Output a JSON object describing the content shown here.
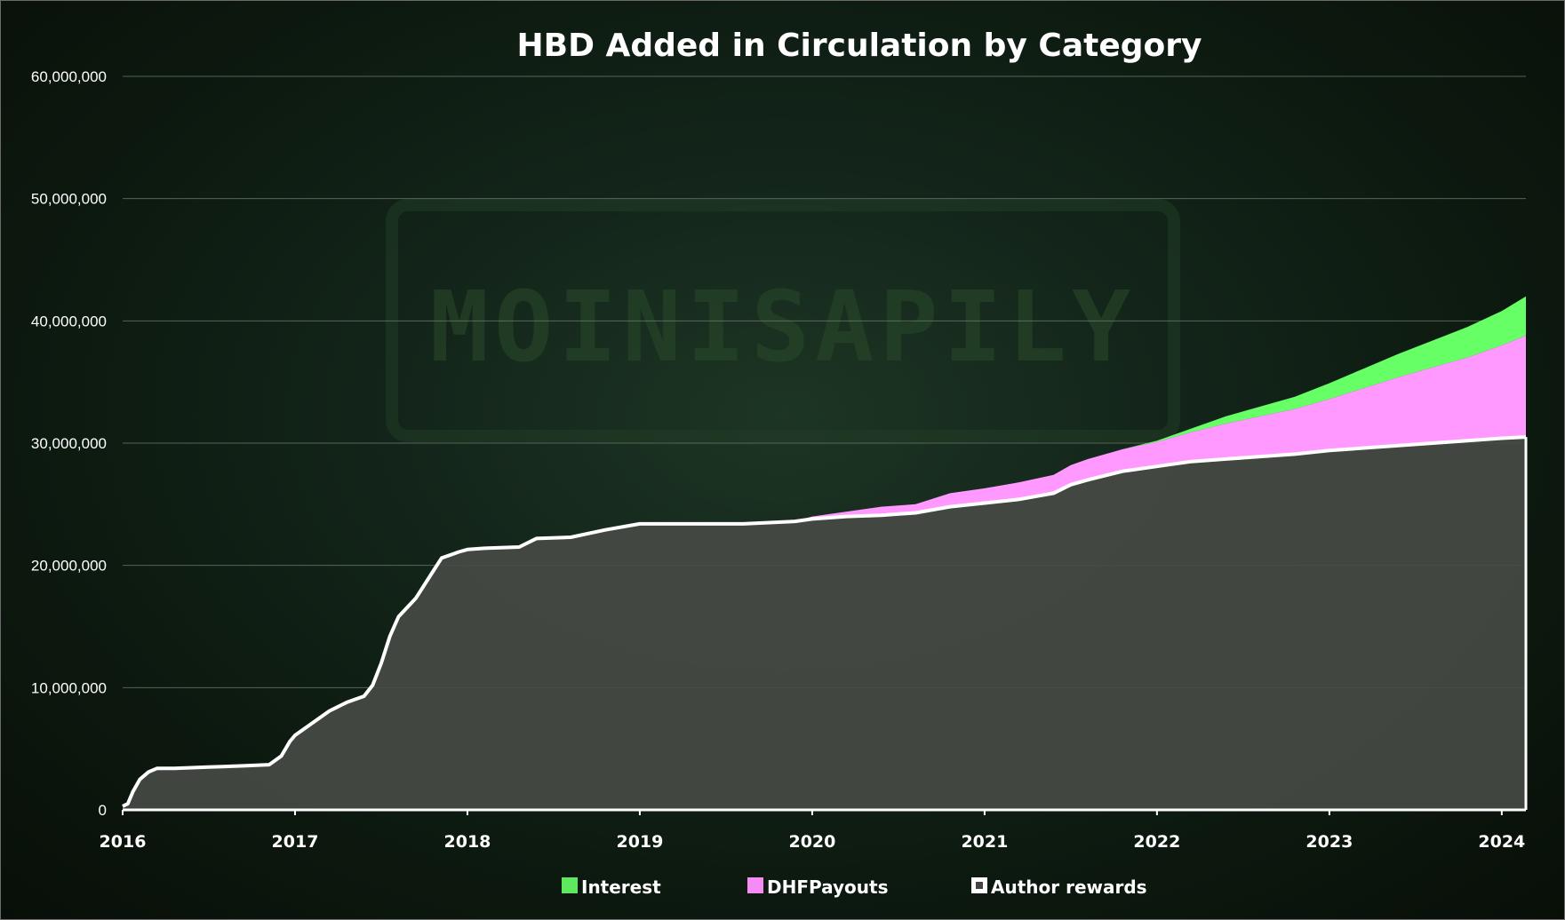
{
  "chart_data": {
    "type": "area",
    "stacked": true,
    "title": "HBD Added in Circulation by Category",
    "xlabel": "",
    "ylabel": "",
    "xlim": [
      2016,
      2024.14
    ],
    "ylim": [
      0,
      60000000
    ],
    "x_ticks": [
      "2016",
      "2017",
      "2018",
      "2019",
      "2020",
      "2021",
      "2022",
      "2023",
      "2024"
    ],
    "y_ticks": [
      "0",
      "10,000,000",
      "20,000,000",
      "30,000,000",
      "40,000,000",
      "50,000,000",
      "60,000,000"
    ],
    "grid": "horizontal",
    "legend_position": "bottom",
    "background_watermark": "MOINISAPILY",
    "x": [
      2016.0,
      2016.03,
      2016.06,
      2016.1,
      2016.15,
      2016.2,
      2016.3,
      2016.5,
      2016.7,
      2016.85,
      2016.92,
      2016.97,
      2017.0,
      2017.1,
      2017.2,
      2017.3,
      2017.4,
      2017.45,
      2017.5,
      2017.55,
      2017.6,
      2017.7,
      2017.8,
      2017.85,
      2017.95,
      2018.0,
      2018.1,
      2018.3,
      2018.4,
      2018.6,
      2018.8,
      2019.0,
      2019.1,
      2019.3,
      2019.6,
      2019.9,
      2020.0,
      2020.2,
      2020.4,
      2020.6,
      2020.8,
      2021.0,
      2021.2,
      2021.4,
      2021.5,
      2021.6,
      2021.8,
      2022.0,
      2022.2,
      2022.4,
      2022.6,
      2022.8,
      2023.0,
      2023.2,
      2023.4,
      2023.6,
      2023.8,
      2024.0,
      2024.14
    ],
    "series": [
      {
        "name": "Author rewards",
        "color": "#ffffff",
        "fill": "#464a44",
        "values": [
          0.3,
          0.5,
          1.5,
          2.5,
          3.1,
          3.4,
          3.4,
          3.5,
          3.6,
          3.7,
          4.4,
          5.6,
          6.1,
          7.1,
          8.1,
          8.8,
          9.3,
          10.2,
          12.0,
          14.2,
          15.8,
          17.3,
          19.5,
          20.6,
          21.1,
          21.3,
          21.4,
          21.5,
          22.2,
          22.3,
          22.9,
          23.4,
          23.4,
          23.4,
          23.4,
          23.6,
          23.8,
          24.0,
          24.1,
          24.3,
          24.8,
          25.1,
          25.4,
          25.9,
          26.6,
          27.0,
          27.7,
          28.1,
          28.5,
          28.7,
          28.9,
          29.1,
          29.4,
          29.6,
          29.8,
          30.0,
          30.2,
          30.4,
          30.5
        ]
      },
      {
        "name": "DHFPayouts",
        "color": "#ff99ff",
        "values": [
          0,
          0,
          0,
          0,
          0,
          0,
          0,
          0,
          0,
          0,
          0,
          0,
          0,
          0,
          0,
          0,
          0,
          0,
          0,
          0,
          0,
          0,
          0,
          0,
          0,
          0,
          0,
          0,
          0,
          0,
          0,
          0,
          0,
          0,
          0,
          0,
          0.2,
          0.4,
          0.7,
          0.7,
          1.1,
          1.2,
          1.4,
          1.5,
          1.6,
          1.7,
          1.8,
          2.0,
          2.4,
          2.9,
          3.3,
          3.7,
          4.2,
          4.9,
          5.6,
          6.2,
          6.8,
          7.6,
          8.3
        ]
      },
      {
        "name": "Interest",
        "color": "#66ff66",
        "values": [
          0,
          0,
          0,
          0,
          0,
          0,
          0,
          0,
          0,
          0,
          0,
          0,
          0,
          0,
          0,
          0,
          0,
          0,
          0,
          0,
          0,
          0,
          0,
          0,
          0,
          0,
          0,
          0,
          0,
          0,
          0,
          0,
          0,
          0,
          0,
          0,
          0,
          0,
          0,
          0,
          0,
          0,
          0,
          0,
          0,
          0,
          0,
          0.1,
          0.3,
          0.6,
          0.8,
          1.0,
          1.3,
          1.6,
          1.9,
          2.2,
          2.5,
          2.8,
          3.2
        ]
      }
    ],
    "values_unit_multiplier": 1000000
  },
  "legend": [
    {
      "label": "Interest",
      "color": "#5fe85f"
    },
    {
      "label": "DHFPayouts",
      "color": "#f58cf5"
    },
    {
      "label": "Author rewards",
      "color": "#ffffff",
      "inner": "#444444"
    }
  ]
}
